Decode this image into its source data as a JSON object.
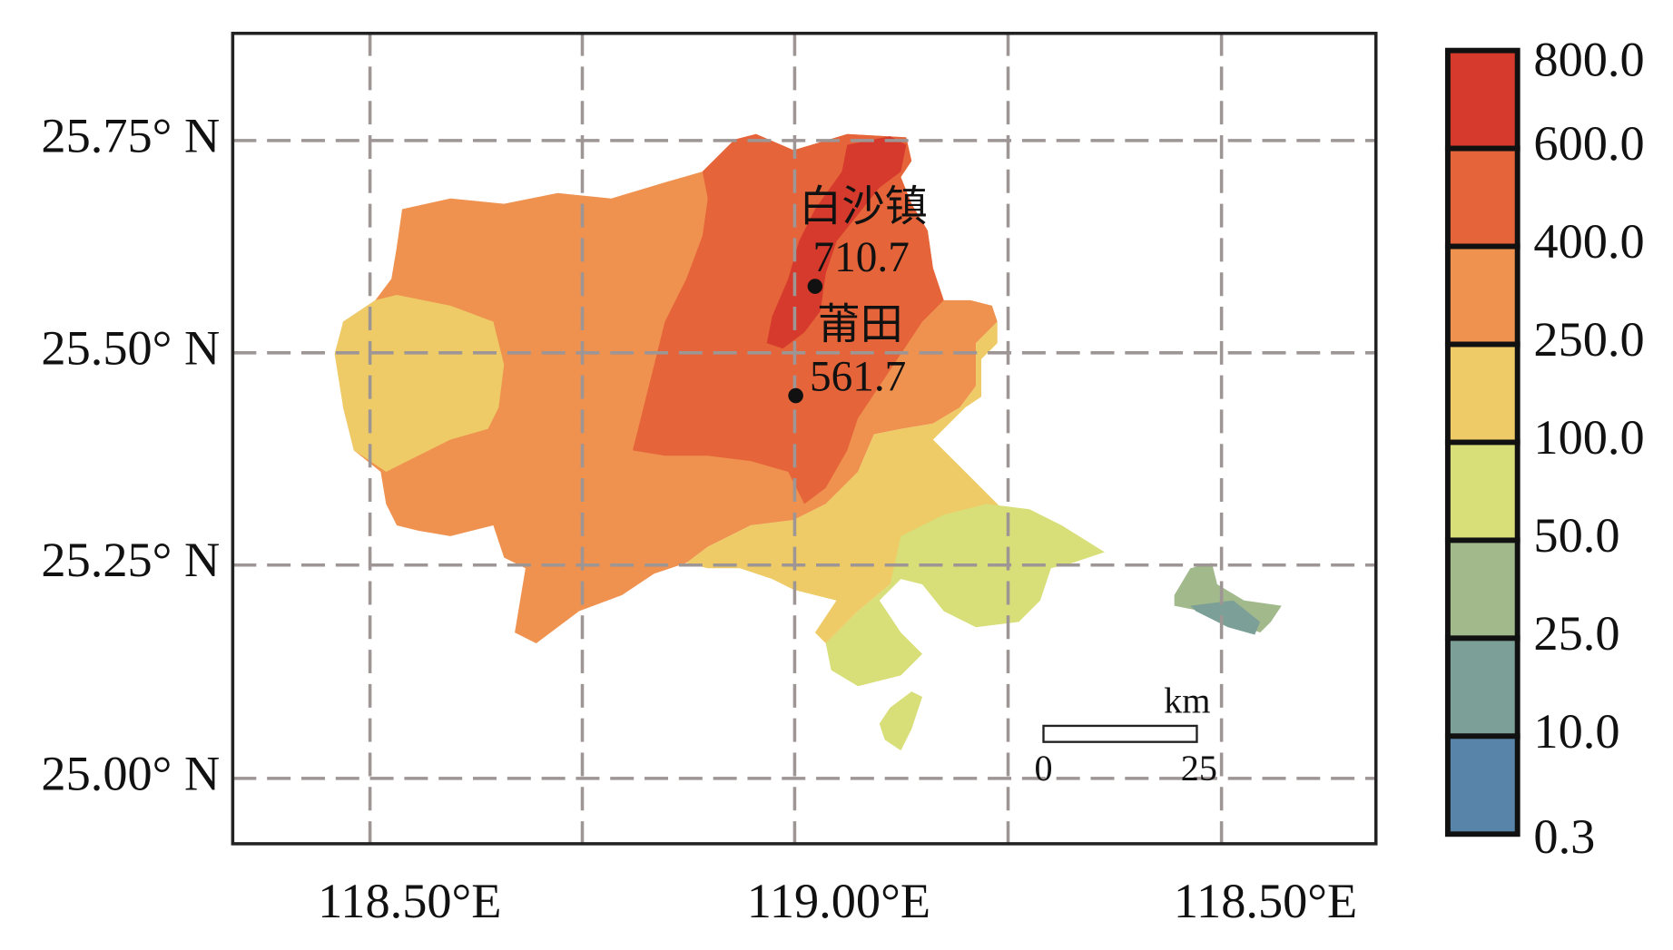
{
  "y_axis": {
    "labels": [
      "25.75° N",
      "25.50° N",
      "25.25° N",
      "25.00° N"
    ]
  },
  "x_axis": {
    "labels": [
      "118.50°E",
      "119.00°E",
      "118.50°E"
    ]
  },
  "legend": {
    "labels": [
      "800.0",
      "600.0",
      "400.0",
      "250.0",
      "100.0",
      "50.0",
      "25.0",
      "10.0",
      "0.3"
    ],
    "colors": [
      "#d63a2c",
      "#e5643a",
      "#ef914f",
      "#eecb66",
      "#d8de78",
      "#a2b98c",
      "#7c9f98",
      "#5784a8"
    ]
  },
  "stations": [
    {
      "name": "白沙镇",
      "value": "710.7"
    },
    {
      "name": "莆田",
      "value": "561.7"
    }
  ],
  "scale_bar": {
    "unit": "km",
    "labels": [
      "0",
      "25"
    ]
  }
}
